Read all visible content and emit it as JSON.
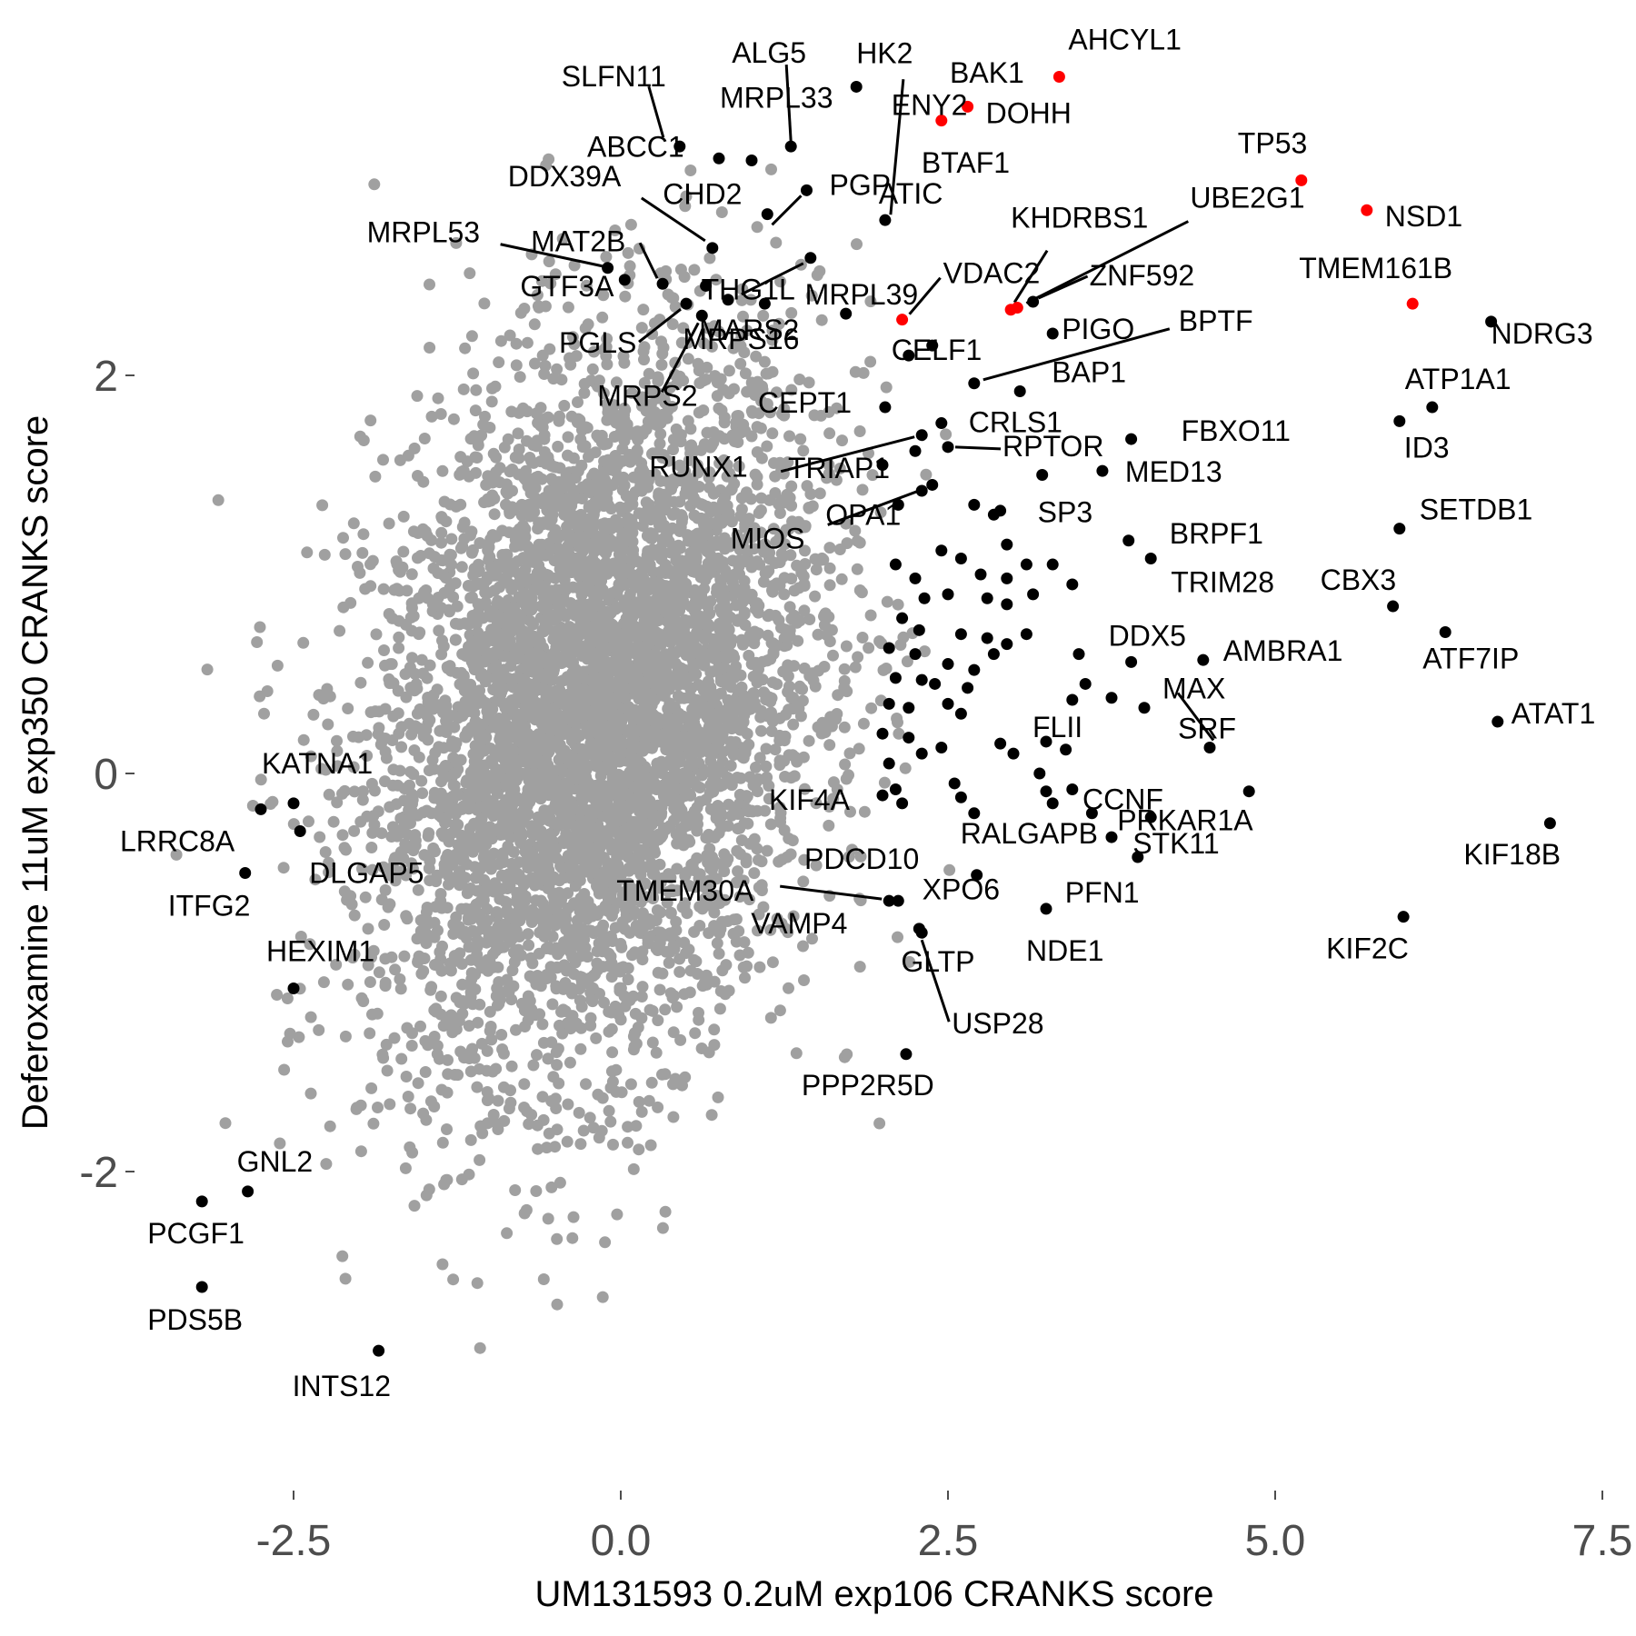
{
  "chart_data": {
    "type": "scatter",
    "title": "",
    "xlabel": "UM131593 0.2uM exp106 CRANKS score",
    "ylabel": "Deferoxamine 11uM exp350 CRANKS score",
    "xlim": [
      -3.7,
      7.5
    ],
    "ylim": [
      -3.6,
      3.4
    ],
    "x_ticks": [
      -2.5,
      0.0,
      2.5,
      5.0,
      7.5
    ],
    "x_tick_labels": [
      "-2.5",
      "0.0",
      "2.5",
      "5.0",
      "7.5"
    ],
    "y_ticks": [
      -2,
      0,
      2
    ],
    "y_tick_labels": [
      "-2",
      "0",
      "2"
    ],
    "grid": false,
    "legend": "none",
    "colors": {
      "background_points": "#a0a0a0",
      "highlight": "#000000",
      "special": "#ff0000"
    },
    "background_cloud": {
      "description_free": true,
      "n_points": 5200,
      "center": [
        -0.2,
        0.3
      ],
      "sd": [
        0.85,
        0.9
      ],
      "correlation": 0.25
    },
    "points": [
      {
        "label": "AHCYL1",
        "x": 3.35,
        "y": 3.5,
        "color": "red"
      },
      {
        "label": "DOHH",
        "x": 2.65,
        "y": 3.35,
        "color": "red"
      },
      {
        "label": "ENY2",
        "x": 2.45,
        "y": 3.28,
        "color": "red"
      },
      {
        "label": "TP53",
        "x": 5.2,
        "y": 2.98,
        "color": "red"
      },
      {
        "label": "NSD1",
        "x": 5.7,
        "y": 2.83,
        "color": "red"
      },
      {
        "label": "TMEM161B",
        "x": 6.05,
        "y": 2.36,
        "color": "red"
      },
      {
        "label": "VDAC2",
        "x": 2.15,
        "y": 2.28,
        "color": "red"
      },
      {
        "label": "KHDRBS1",
        "x": 2.98,
        "y": 2.33,
        "color": "red"
      },
      {
        "label": "UBE2G1",
        "x": 3.03,
        "y": 2.34,
        "color": "red"
      },
      {
        "label": "HK2",
        "x": 1.8,
        "y": 3.45,
        "color": "black"
      },
      {
        "label": "BAK1",
        "x": "",
        "y": "",
        "color": "none"
      },
      {
        "label": "ALG5",
        "x": 1.3,
        "y": 3.15,
        "color": "black"
      },
      {
        "label": "MRPL33",
        "x": 1.0,
        "y": 3.08,
        "color": "black"
      },
      {
        "label": "SLFN11",
        "x": 0.45,
        "y": 3.15,
        "color": "black"
      },
      {
        "label": "ABCC1",
        "x": 0.75,
        "y": 3.09,
        "color": "black"
      },
      {
        "label": "PGP",
        "x": 1.42,
        "y": 2.93,
        "color": "black"
      },
      {
        "label": "CHD2",
        "x": 1.12,
        "y": 2.81,
        "color": "black"
      },
      {
        "label": "DDX39A",
        "x": 0.7,
        "y": 2.64,
        "color": "black"
      },
      {
        "label": "BTAF1",
        "x": 2.02,
        "y": 2.78,
        "color": "black"
      },
      {
        "label": "ATIC",
        "x": 1.45,
        "y": 2.59,
        "color": "black"
      },
      {
        "label": "THG1L",
        "x": 0.65,
        "y": 2.45,
        "color": "black"
      },
      {
        "label": "MAT2B",
        "x": 0.32,
        "y": 2.46,
        "color": "black"
      },
      {
        "label": "MRPL53",
        "x": -0.1,
        "y": 2.54,
        "color": "black"
      },
      {
        "label": "GTF3A",
        "x": 0.03,
        "y": 2.48,
        "color": "black"
      },
      {
        "label": "PGLS",
        "x": 0.5,
        "y": 2.36,
        "color": "black"
      },
      {
        "label": "MARS2",
        "x": 0.82,
        "y": 2.38,
        "color": "black"
      },
      {
        "label": "MRPS16",
        "x": 1.1,
        "y": 2.36,
        "color": "black"
      },
      {
        "label": "MRPL39",
        "x": 1.72,
        "y": 2.31,
        "color": "black"
      },
      {
        "label": "MRPS2",
        "x": 0.62,
        "y": 2.3,
        "color": "black"
      },
      {
        "label": "ZNF592",
        "x": 3.15,
        "y": 2.37,
        "color": "black"
      },
      {
        "label": "PIGO",
        "x": 3.3,
        "y": 2.21,
        "color": "black"
      },
      {
        "label": "CELF1",
        "x": 2.38,
        "y": 2.15,
        "color": "black"
      },
      {
        "label": "BPTF",
        "x": 2.7,
        "y": 1.96,
        "color": "black"
      },
      {
        "label": "BAP1",
        "x": 3.05,
        "y": 1.92,
        "color": "black"
      },
      {
        "label": "CEPT1",
        "x": 2.02,
        "y": 1.84,
        "color": "black"
      },
      {
        "label": "CRLS1",
        "x": 2.45,
        "y": 1.76,
        "color": "black"
      },
      {
        "label": "RUNX1",
        "x": 2.3,
        "y": 1.7,
        "color": "black"
      },
      {
        "label": "RPTOR",
        "x": 2.5,
        "y": 1.64,
        "color": "black"
      },
      {
        "label": "TRIAP1",
        "x": 2.25,
        "y": 1.62,
        "color": "black"
      },
      {
        "label": "MIOS",
        "x": 2.38,
        "y": 1.45,
        "color": "black"
      },
      {
        "label": "OPA1",
        "x": 2.12,
        "y": 1.35,
        "color": "black"
      },
      {
        "label": "FBXO11",
        "x": 3.9,
        "y": 1.68,
        "color": "black"
      },
      {
        "label": "MED13",
        "x": 3.68,
        "y": 1.52,
        "color": "black"
      },
      {
        "label": "SP3",
        "x": 3.22,
        "y": 1.5,
        "color": "black"
      },
      {
        "label": "BRPF1",
        "x": 3.88,
        "y": 1.17,
        "color": "black"
      },
      {
        "label": "TRIM28",
        "x": 4.05,
        "y": 1.08,
        "color": "black"
      },
      {
        "label": "ATP1A1",
        "x": 6.2,
        "y": 1.84,
        "color": "black"
      },
      {
        "label": "ID3",
        "x": 5.95,
        "y": 1.77,
        "color": "black"
      },
      {
        "label": "NDRG3",
        "x": 6.65,
        "y": 2.27,
        "color": "black"
      },
      {
        "label": "SETDB1",
        "x": 5.95,
        "y": 1.23,
        "color": "black"
      },
      {
        "label": "CBX3",
        "x": 5.9,
        "y": 0.84,
        "color": "black"
      },
      {
        "label": "ATF7IP",
        "x": 6.3,
        "y": 0.71,
        "color": "black"
      },
      {
        "label": "ATAT1",
        "x": 6.7,
        "y": 0.26,
        "color": "black"
      },
      {
        "label": "DDX5",
        "x": 3.9,
        "y": 0.56,
        "color": "black"
      },
      {
        "label": "AMBRA1",
        "x": 4.45,
        "y": 0.57,
        "color": "black"
      },
      {
        "label": "MAX",
        "x": 4.0,
        "y": 0.33,
        "color": "black"
      },
      {
        "label": "FLII",
        "x": 3.25,
        "y": 0.16,
        "color": "black"
      },
      {
        "label": "SRF",
        "x": 4.5,
        "y": 0.13,
        "color": "black"
      },
      {
        "label": "CCNF",
        "x": 3.25,
        "y": -0.09,
        "color": "black"
      },
      {
        "label": "STK11",
        "x": 4.05,
        "y": -0.22,
        "color": "black"
      },
      {
        "label": "PRKAR1A",
        "x": 4.8,
        "y": -0.09,
        "color": "black"
      },
      {
        "label": "KIF18B",
        "x": 7.1,
        "y": -0.25,
        "color": "black"
      },
      {
        "label": "KIF4A",
        "x": 2.0,
        "y": -0.11,
        "color": "black"
      },
      {
        "label": "RALGAPB",
        "x": 2.7,
        "y": -0.2,
        "color": "black"
      },
      {
        "label": "PDCD10",
        "x": 3.75,
        "y": -0.32,
        "color": "black"
      },
      {
        "label": "PFN1",
        "x": 3.95,
        "y": -0.42,
        "color": "black"
      },
      {
        "label": "TMEM30A",
        "x": 2.05,
        "y": -0.64,
        "color": "black"
      },
      {
        "label": "XPO6",
        "x": 2.72,
        "y": -0.51,
        "color": "black"
      },
      {
        "label": "NDE1",
        "x": 3.25,
        "y": -0.68,
        "color": "black"
      },
      {
        "label": "VAMP4",
        "x": 2.12,
        "y": -0.64,
        "color": "black"
      },
      {
        "label": "GLTP",
        "x": 2.28,
        "y": -0.78,
        "color": "black"
      },
      {
        "label": "USP28",
        "x": 2.3,
        "y": -0.8,
        "color": "black"
      },
      {
        "label": "PPP2R5D",
        "x": 2.18,
        "y": -1.41,
        "color": "black"
      },
      {
        "label": "KIF2C",
        "x": 5.98,
        "y": -0.72,
        "color": "black"
      },
      {
        "label": "KATNA1",
        "x": -2.5,
        "y": -0.15,
        "color": "black"
      },
      {
        "label": "LRRC8A",
        "x": -2.75,
        "y": -0.18,
        "color": "black"
      },
      {
        "label": "DLGAP5",
        "x": -2.45,
        "y": -0.29,
        "color": "black"
      },
      {
        "label": "ITFG2",
        "x": -2.87,
        "y": -0.5,
        "color": "black"
      },
      {
        "label": "HEXIM1",
        "x": -2.5,
        "y": -1.08,
        "color": "black"
      },
      {
        "label": "GNL2",
        "x": -2.85,
        "y": -2.1,
        "color": "black"
      },
      {
        "label": "PCGF1",
        "x": -3.2,
        "y": -2.15,
        "color": "black"
      },
      {
        "label": "PDS5B",
        "x": -3.2,
        "y": -2.58,
        "color": "black"
      },
      {
        "label": "INTS12",
        "x": -1.85,
        "y": -2.9,
        "color": "black"
      }
    ],
    "unlabeled_black": [
      [
        2.2,
        2.1
      ],
      [
        2.0,
        1.55
      ],
      [
        2.3,
        1.42
      ],
      [
        2.7,
        1.35
      ],
      [
        2.85,
        1.3
      ],
      [
        2.9,
        1.32
      ],
      [
        2.45,
        1.12
      ],
      [
        2.6,
        1.08
      ],
      [
        2.95,
        1.15
      ],
      [
        3.1,
        1.05
      ],
      [
        2.75,
        1.0
      ],
      [
        2.95,
        0.98
      ],
      [
        3.3,
        1.05
      ],
      [
        3.45,
        0.95
      ],
      [
        2.1,
        1.05
      ],
      [
        2.25,
        0.98
      ],
      [
        2.32,
        0.88
      ],
      [
        2.5,
        0.9
      ],
      [
        2.8,
        0.88
      ],
      [
        2.95,
        0.85
      ],
      [
        3.15,
        0.9
      ],
      [
        2.15,
        0.78
      ],
      [
        2.28,
        0.72
      ],
      [
        2.6,
        0.7
      ],
      [
        2.8,
        0.68
      ],
      [
        2.95,
        0.65
      ],
      [
        3.1,
        0.7
      ],
      [
        2.05,
        0.63
      ],
      [
        2.25,
        0.6
      ],
      [
        2.5,
        0.55
      ],
      [
        2.7,
        0.52
      ],
      [
        2.85,
        0.6
      ],
      [
        3.5,
        0.6
      ],
      [
        2.1,
        0.48
      ],
      [
        2.3,
        0.47
      ],
      [
        2.4,
        0.45
      ],
      [
        2.65,
        0.43
      ],
      [
        3.55,
        0.45
      ],
      [
        3.75,
        0.38
      ],
      [
        2.05,
        0.35
      ],
      [
        2.2,
        0.33
      ],
      [
        2.5,
        0.35
      ],
      [
        2.6,
        0.3
      ],
      [
        3.45,
        0.37
      ],
      [
        2.0,
        0.2
      ],
      [
        2.2,
        0.18
      ],
      [
        2.45,
        0.13
      ],
      [
        2.9,
        0.15
      ],
      [
        3.4,
        0.12
      ],
      [
        2.05,
        0.05
      ],
      [
        2.3,
        0.1
      ],
      [
        3.0,
        0.1
      ],
      [
        3.2,
        0.0
      ],
      [
        2.1,
        -0.08
      ],
      [
        2.55,
        -0.05
      ],
      [
        3.45,
        -0.08
      ],
      [
        2.15,
        -0.15
      ],
      [
        2.6,
        -0.12
      ],
      [
        3.3,
        -0.15
      ],
      [
        3.6,
        -0.2
      ]
    ]
  }
}
